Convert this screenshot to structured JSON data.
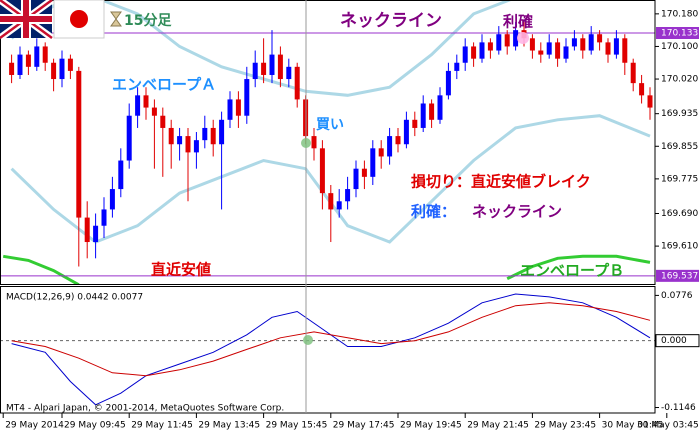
{
  "chart_data": {
    "type": "candlestick",
    "title": "15分足",
    "indicator_label": "MACD(12,26,9) 0.0442 0.0077",
    "copyright": "MT4 - Alpari Japan, © 2001-2014, MetaQuotes Software Corp.",
    "annotations": [
      {
        "text": "ネックライン",
        "color": "#800080"
      },
      {
        "text": "利確",
        "color": "#800080"
      },
      {
        "text": "エンベロープＡ",
        "color": "#1e90ff"
      },
      {
        "text": "買い",
        "color": "#1e90ff"
      },
      {
        "text": "損切り：直近安値ブレイク",
        "color": "#e00000"
      },
      {
        "text": "利確：",
        "color": "#1e60ff"
      },
      {
        "text": "ネックライン",
        "color": "#800080"
      },
      {
        "text": "直近安値",
        "color": "#e00000"
      },
      {
        "text": "エンベロープＢ",
        "color": "#22aa22"
      }
    ],
    "xticks": [
      {
        "value": -1,
        "label": "29 May 2014"
      },
      {
        "value": 6,
        "label": "29 May 09:45"
      },
      {
        "value": 14,
        "label": "29 May 11:45"
      },
      {
        "value": 22,
        "label": "29 May 13:45"
      },
      {
        "value": 30,
        "label": "29 May 15:45"
      },
      {
        "value": 38,
        "label": "29 May 17:45"
      },
      {
        "value": 46,
        "label": "29 May 19:45"
      },
      {
        "value": 54,
        "label": "29 May 21:45"
      },
      {
        "value": 62,
        "label": "29 May 23:45"
      },
      {
        "value": 70,
        "label": "30 May 01:45"
      },
      {
        "value": 78,
        "label": "30 May 03:45"
      }
    ],
    "price": {
      "ylim": [
        169.517,
        170.214
      ],
      "yticks": [
        {
          "value": 170.18,
          "label": "170.180"
        },
        {
          "value": 170.1,
          "label": "170.100"
        },
        {
          "value": 170.02,
          "label": "170.020"
        },
        169.935,
        169.855,
        169.775,
        {
          "value": 169.69,
          "label": "169.690"
        },
        {
          "value": 169.61,
          "label": "169.610"
        }
      ],
      "up_color": "#0000ff",
      "down_color": "#e00000",
      "candles": [
        [
          170.06,
          170.08,
          170.01,
          170.03
        ],
        [
          170.03,
          170.1,
          170.02,
          170.08
        ],
        [
          170.08,
          170.09,
          170.03,
          170.05
        ],
        [
          170.05,
          170.12,
          170.04,
          170.1
        ],
        [
          170.1,
          170.11,
          170.04,
          170.06
        ],
        [
          170.06,
          170.07,
          169.99,
          170.02
        ],
        [
          170.02,
          170.09,
          170.0,
          170.07
        ],
        [
          170.07,
          170.08,
          170.02,
          170.04
        ],
        [
          170.04,
          170.05,
          169.56,
          169.68
        ],
        [
          169.68,
          169.72,
          169.58,
          169.62
        ],
        [
          169.62,
          169.69,
          169.58,
          169.66
        ],
        [
          169.66,
          169.73,
          169.63,
          169.7
        ],
        [
          169.7,
          169.78,
          169.68,
          169.75
        ],
        [
          169.75,
          169.85,
          169.73,
          169.82
        ],
        [
          169.82,
          169.96,
          169.8,
          169.93
        ],
        [
          169.93,
          170.0,
          169.9,
          169.98
        ],
        [
          169.98,
          170.0,
          169.92,
          169.95
        ],
        [
          169.95,
          169.97,
          169.8,
          169.93
        ],
        [
          169.93,
          169.95,
          169.78,
          169.9
        ],
        [
          169.9,
          169.92,
          169.8,
          169.86
        ],
        [
          169.86,
          169.9,
          169.82,
          169.88
        ],
        [
          169.88,
          169.9,
          169.72,
          169.84
        ],
        [
          169.84,
          169.89,
          169.8,
          169.87
        ],
        [
          169.87,
          169.93,
          169.85,
          169.9
        ],
        [
          169.9,
          169.92,
          169.83,
          169.86
        ],
        [
          169.86,
          169.94,
          169.7,
          169.92
        ],
        [
          169.92,
          169.99,
          169.9,
          169.97
        ],
        [
          169.97,
          169.99,
          169.9,
          169.93
        ],
        [
          169.93,
          170.05,
          169.91,
          170.02
        ],
        [
          170.02,
          170.09,
          170.0,
          170.06
        ],
        [
          170.06,
          170.12,
          170.01,
          170.03
        ],
        [
          170.03,
          170.14,
          170.01,
          170.08
        ],
        [
          170.08,
          170.1,
          170.0,
          170.02
        ],
        [
          170.02,
          170.07,
          170.0,
          170.05
        ],
        [
          170.05,
          170.06,
          169.95,
          169.97
        ],
        [
          169.97,
          169.98,
          169.86,
          169.88
        ],
        [
          169.88,
          169.9,
          169.82,
          169.85
        ],
        [
          169.85,
          169.87,
          169.7,
          169.74
        ],
        [
          169.74,
          169.76,
          169.62,
          169.7
        ],
        [
          169.7,
          169.75,
          169.68,
          169.72
        ],
        [
          169.72,
          169.78,
          169.7,
          169.75
        ],
        [
          169.75,
          169.82,
          169.73,
          169.8
        ],
        [
          169.8,
          169.82,
          169.75,
          169.78
        ],
        [
          169.78,
          169.87,
          169.76,
          169.85
        ],
        [
          169.85,
          169.87,
          169.8,
          169.83
        ],
        [
          169.83,
          169.9,
          169.81,
          169.88
        ],
        [
          169.88,
          169.9,
          169.84,
          169.86
        ],
        [
          169.86,
          169.94,
          169.85,
          169.92
        ],
        [
          169.92,
          169.94,
          169.88,
          169.9
        ],
        [
          169.9,
          169.98,
          169.89,
          169.96
        ],
        [
          169.96,
          169.97,
          169.9,
          169.92
        ],
        [
          169.92,
          170.0,
          169.91,
          169.98
        ],
        [
          169.98,
          170.06,
          169.97,
          170.04
        ],
        [
          170.04,
          170.08,
          170.02,
          170.06
        ],
        [
          170.06,
          170.12,
          170.04,
          170.1
        ],
        [
          170.1,
          170.11,
          170.05,
          170.07
        ],
        [
          170.07,
          170.13,
          170.06,
          170.11
        ],
        [
          170.11,
          170.12,
          170.07,
          170.09
        ],
        [
          170.09,
          170.15,
          170.08,
          170.13
        ],
        [
          170.13,
          170.14,
          170.08,
          170.1
        ],
        [
          170.1,
          170.16,
          170.09,
          170.14
        ],
        [
          170.14,
          170.16,
          170.1,
          170.12
        ],
        [
          170.12,
          170.13,
          170.07,
          170.09
        ],
        [
          170.09,
          170.11,
          170.06,
          170.08
        ],
        [
          170.08,
          170.13,
          170.07,
          170.11
        ],
        [
          170.11,
          170.12,
          170.05,
          170.07
        ],
        [
          170.07,
          170.12,
          170.06,
          170.1
        ],
        [
          170.1,
          170.14,
          170.09,
          170.12
        ],
        [
          170.12,
          170.13,
          170.07,
          170.09
        ],
        [
          170.09,
          170.15,
          170.08,
          170.13
        ],
        [
          170.13,
          170.14,
          170.09,
          170.11
        ],
        [
          170.11,
          170.12,
          170.06,
          170.08
        ],
        [
          170.08,
          170.14,
          170.07,
          170.12
        ],
        [
          170.12,
          170.13,
          170.03,
          170.06
        ],
        [
          170.06,
          170.07,
          169.99,
          170.01
        ],
        [
          170.01,
          170.03,
          169.96,
          169.98
        ],
        [
          169.98,
          170.0,
          169.92,
          169.95
        ]
      ],
      "levels": [
        {
          "value": 170.133,
          "color": "#9932cc"
        },
        {
          "value": 169.537,
          "color": "#9932cc"
        }
      ],
      "envelopes": [
        {
          "color": "#add8e6",
          "x": [
            0,
            5,
            10,
            15,
            20,
            25,
            30,
            35,
            40,
            45,
            50,
            55,
            60,
            65,
            70,
            76
          ],
          "values": [
            170.12,
            170.2,
            170.22,
            170.18,
            170.1,
            170.05,
            170.02,
            169.99,
            169.98,
            170.0,
            170.08,
            170.18,
            170.22,
            170.22,
            170.22,
            170.22
          ]
        },
        {
          "color": "#add8e6",
          "x": [
            0,
            5,
            10,
            15,
            20,
            25,
            30,
            35,
            40,
            45,
            50,
            55,
            60,
            65,
            70,
            76
          ],
          "values": [
            169.8,
            169.7,
            169.62,
            169.66,
            169.74,
            169.78,
            169.82,
            169.8,
            169.66,
            169.62,
            169.72,
            169.82,
            169.9,
            169.92,
            169.93,
            169.88
          ]
        },
        {
          "color": "#33cc33",
          "x": [
            -1,
            2,
            5,
            8
          ],
          "values": [
            169.585,
            169.575,
            169.55,
            169.515
          ]
        },
        {
          "color": "#33cc33",
          "x": [
            59,
            62,
            65,
            68,
            72,
            76
          ],
          "values": [
            169.53,
            169.56,
            169.58,
            169.585,
            169.585,
            169.57
          ]
        }
      ]
    },
    "macd": {
      "ylim": [
        -0.124,
        0.092
      ],
      "yticks": [
        0.0776,
        {
          "value": 0,
          "label": "0.000"
        },
        -0.1146
      ],
      "series": [
        {
          "color": "#0000cd",
          "x": [
            0,
            4,
            7,
            10,
            13,
            16,
            20,
            24,
            28,
            31,
            34,
            37,
            40,
            44,
            48,
            52,
            56,
            60,
            64,
            68,
            72,
            76
          ],
          "values": [
            -0.005,
            -0.02,
            -0.07,
            -0.11,
            -0.09,
            -0.06,
            -0.04,
            -0.02,
            0.01,
            0.04,
            0.05,
            0.02,
            -0.01,
            -0.01,
            0.005,
            0.03,
            0.065,
            0.08,
            0.075,
            0.065,
            0.04,
            0.005
          ]
        },
        {
          "color": "#cc0000",
          "x": [
            0,
            4,
            8,
            12,
            16,
            20,
            24,
            28,
            32,
            36,
            40,
            44,
            48,
            52,
            56,
            60,
            64,
            68,
            72,
            76
          ],
          "values": [
            0.0,
            -0.01,
            -0.03,
            -0.055,
            -0.06,
            -0.05,
            -0.035,
            -0.015,
            0.005,
            0.015,
            0.005,
            -0.005,
            0.0,
            0.015,
            0.04,
            0.06,
            0.065,
            0.06,
            0.05,
            0.035
          ]
        }
      ]
    }
  }
}
